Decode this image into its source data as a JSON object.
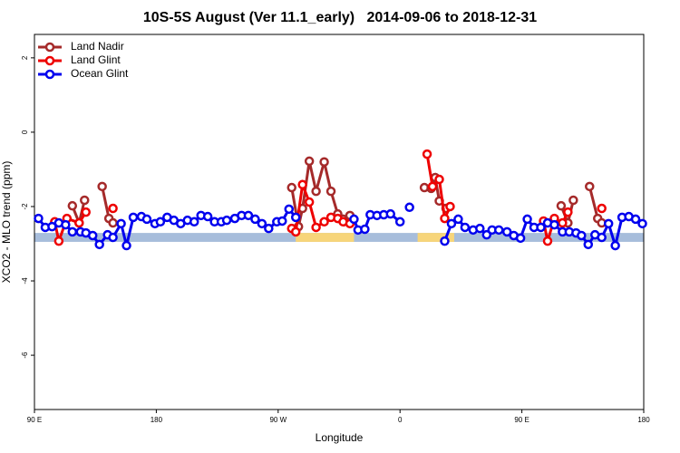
{
  "chart_data": {
    "type": "line",
    "title": "10S-5S August (Ver 11.1_early)   2014-09-06 to 2018-12-31",
    "x_label": "Longitude",
    "y_label": "XCO2 - MLO trend (ppm)",
    "xlim": [
      90,
      540
    ],
    "ylim": [
      -7.46,
      2.63
    ],
    "xticks": [
      {
        "value": 90,
        "label": "90 E"
      },
      {
        "value": 180,
        "label": "180"
      },
      {
        "value": 270,
        "label": "90 W"
      },
      {
        "value": 360,
        "label": "0"
      },
      {
        "value": 450,
        "label": "90 E"
      },
      {
        "value": 540,
        "label": "180"
      }
    ],
    "yticks": [
      2,
      0,
      -2,
      -4,
      -6
    ],
    "legend": "top-left",
    "band": {
      "range": [
        -2.95,
        -2.71
      ],
      "color": "#a7bddb",
      "highlights": [
        [
          283,
          326
        ],
        [
          373,
          400
        ]
      ],
      "highlight_color": "#f7d57a"
    },
    "series": [
      {
        "name": "Land Nadir",
        "color": "#a52a2a",
        "x": [
          118,
          123,
          127,
          null,
          140,
          145,
          148,
          null,
          280,
          285,
          288,
          293,
          298,
          304,
          309,
          314,
          318,
          323,
          null,
          378,
          383,
          386,
          389,
          394,
          null,
          479,
          484,
          488,
          null,
          500,
          506,
          509
        ],
        "values": [
          -1.98,
          -2.44,
          -1.83,
          null,
          -1.46,
          -2.32,
          -2.44,
          null,
          -1.49,
          -2.54,
          -2.05,
          -0.78,
          -1.59,
          -0.8,
          -1.59,
          -2.2,
          -2.34,
          -2.24,
          null,
          -1.49,
          -1.51,
          -1.22,
          -1.85,
          -2.05,
          null,
          -1.98,
          -2.44,
          -1.83,
          null,
          -1.46,
          -2.32,
          -2.44
        ]
      },
      {
        "name": "Land Glint",
        "color": "#ee0000",
        "x": [
          105,
          108,
          114,
          123,
          128,
          null,
          148,
          null,
          280,
          283,
          288,
          293,
          298,
          304,
          309,
          314,
          318,
          323,
          null,
          380,
          384,
          389,
          393,
          397,
          null,
          466,
          469,
          474,
          480,
          484,
          null,
          509
        ],
        "values": [
          -2.41,
          -2.93,
          -2.32,
          -2.44,
          -2.15,
          null,
          -2.05,
          null,
          -2.59,
          -2.68,
          -1.41,
          -1.88,
          -2.56,
          -2.41,
          -2.29,
          -2.32,
          -2.41,
          -2.46,
          null,
          -0.59,
          -1.46,
          -1.27,
          -2.32,
          -2.0,
          null,
          -2.39,
          -2.93,
          -2.32,
          -2.44,
          -2.15,
          null,
          -2.05
        ]
      },
      {
        "name": "Ocean Glint",
        "color": "#0000ee",
        "x": [
          93,
          98,
          103,
          108,
          113,
          118,
          124,
          128,
          133,
          138,
          144,
          148,
          154,
          158,
          163,
          169,
          173,
          179,
          183,
          188,
          193,
          198,
          203,
          208,
          213,
          218,
          223,
          228,
          232,
          238,
          243,
          248,
          253,
          258,
          263,
          269,
          273,
          278,
          283,
          null,
          326,
          329,
          334,
          338,
          343,
          348,
          353,
          360,
          null,
          367,
          null,
          393,
          398,
          403,
          408,
          414,
          419,
          424,
          428,
          433,
          439,
          444,
          449,
          454,
          459,
          464,
          469,
          474,
          480,
          485,
          490,
          494,
          499,
          504,
          509,
          514,
          519,
          524,
          529,
          534,
          539
        ],
        "values": [
          -2.32,
          -2.56,
          -2.54,
          -2.44,
          -2.49,
          -2.68,
          -2.68,
          -2.71,
          -2.78,
          -3.02,
          -2.76,
          -2.83,
          -2.46,
          -3.05,
          -2.29,
          -2.27,
          -2.34,
          -2.46,
          -2.41,
          -2.29,
          -2.37,
          -2.46,
          -2.37,
          -2.41,
          -2.24,
          -2.27,
          -2.41,
          -2.41,
          -2.37,
          -2.32,
          -2.24,
          -2.24,
          -2.34,
          -2.46,
          -2.59,
          -2.41,
          -2.39,
          -2.07,
          -2.29,
          null,
          -2.34,
          -2.63,
          -2.61,
          -2.22,
          -2.24,
          -2.22,
          -2.2,
          -2.41,
          null,
          -2.02,
          null,
          -2.93,
          -2.46,
          -2.34,
          -2.56,
          -2.63,
          -2.59,
          -2.76,
          -2.63,
          -2.63,
          -2.68,
          -2.78,
          -2.85,
          -2.34,
          -2.56,
          -2.56,
          -2.44,
          -2.49,
          -2.68,
          -2.68,
          -2.71,
          -2.78,
          -3.02,
          -2.76,
          -2.83,
          -2.46,
          -3.05,
          -2.29,
          -2.27,
          -2.34,
          -2.46
        ]
      }
    ]
  }
}
